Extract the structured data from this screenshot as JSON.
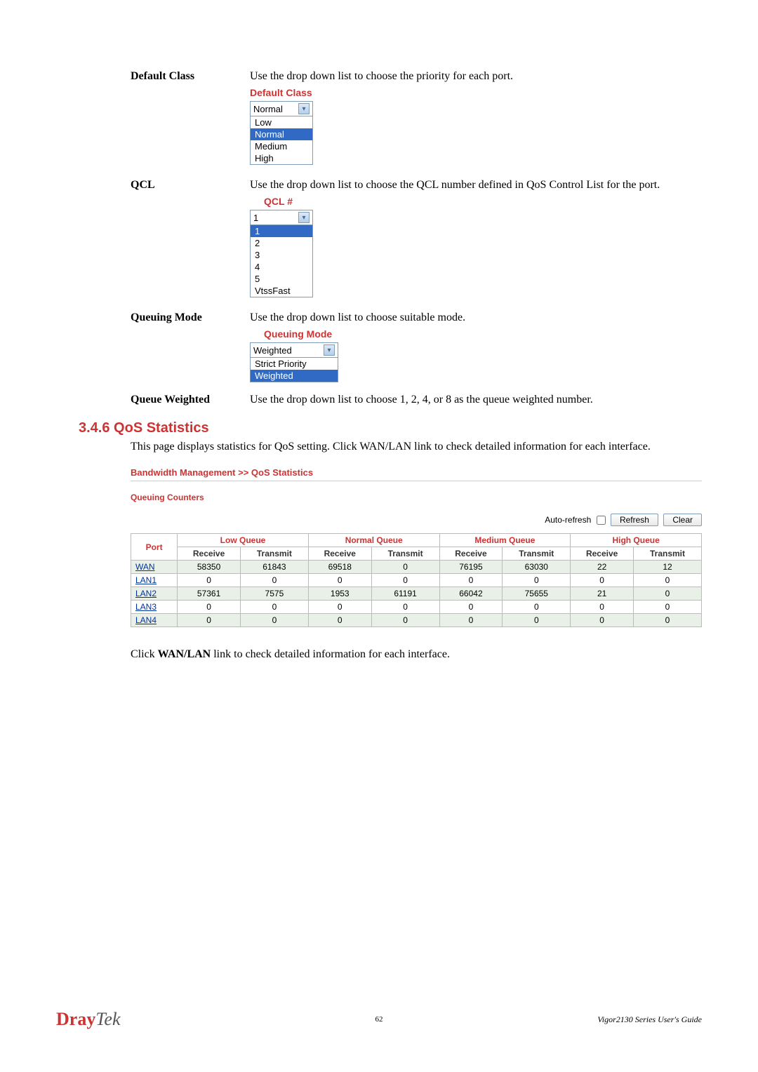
{
  "colors": {
    "accent_red": "#cc3333",
    "highlight_blue": "#316ac5",
    "link_blue": "#003399",
    "border_gray": "#7f9db9",
    "row_alt_bg": "#e8f0e8"
  },
  "defs": {
    "default_class": {
      "label": "Default Class",
      "text": "Use the drop down list to choose the priority for each port.",
      "widget_label": "Default Class",
      "selected": "Normal",
      "options": [
        "Low",
        "Normal",
        "Medium",
        "High"
      ],
      "highlighted": "Normal"
    },
    "qcl": {
      "label": "QCL",
      "text": "Use the drop down list to choose the QCL number defined in QoS Control List for the port.",
      "widget_label": "QCL #",
      "selected": "1",
      "options": [
        "1",
        "2",
        "3",
        "4",
        "5",
        "VtssFast"
      ],
      "highlighted": "1"
    },
    "queuing_mode": {
      "label": "Queuing Mode",
      "text": "Use the drop down list to choose suitable mode.",
      "widget_label": "Queuing Mode",
      "selected": "Weighted",
      "options": [
        "Strict Priority",
        "Weighted"
      ],
      "highlighted": "Weighted"
    },
    "queue_weighted": {
      "label": "Queue Weighted",
      "text": "Use the drop down list to choose 1, 2, 4, or 8 as the queue weighted number."
    }
  },
  "section": {
    "heading": "3.4.6 QoS Statistics",
    "intro": "This page displays statistics for QoS setting. Click WAN/LAN link to check detailed information for each interface."
  },
  "stats": {
    "breadcrumb": "Bandwidth Management >> QoS Statistics",
    "subheading": "Queuing Counters",
    "auto_refresh_label": "Auto-refresh",
    "refresh_btn": "Refresh",
    "clear_btn": "Clear",
    "col_port": "Port",
    "groups": [
      "Low Queue",
      "Normal Queue",
      "Medium Queue",
      "High Queue"
    ],
    "subcols": [
      "Receive",
      "Transmit"
    ],
    "rows": [
      {
        "port": "WAN",
        "vals": [
          58350,
          61843,
          69518,
          0,
          76195,
          63030,
          22,
          12
        ],
        "alt": true
      },
      {
        "port": "LAN1",
        "vals": [
          0,
          0,
          0,
          0,
          0,
          0,
          0,
          0
        ],
        "alt": false
      },
      {
        "port": "LAN2",
        "vals": [
          57361,
          7575,
          1953,
          61191,
          66042,
          75655,
          21,
          0
        ],
        "alt": true
      },
      {
        "port": "LAN3",
        "vals": [
          0,
          0,
          0,
          0,
          0,
          0,
          0,
          0
        ],
        "alt": false
      },
      {
        "port": "LAN4",
        "vals": [
          0,
          0,
          0,
          0,
          0,
          0,
          0,
          0
        ],
        "alt": true
      }
    ]
  },
  "click_note_pre": "Click ",
  "click_note_bold": "WAN/LAN",
  "click_note_post": " link to check detailed information for each interface.",
  "footer": {
    "logo_dray": "Dray",
    "logo_tek": "Tek",
    "page": "62",
    "guide": "Vigor2130 Series User's Guide"
  }
}
